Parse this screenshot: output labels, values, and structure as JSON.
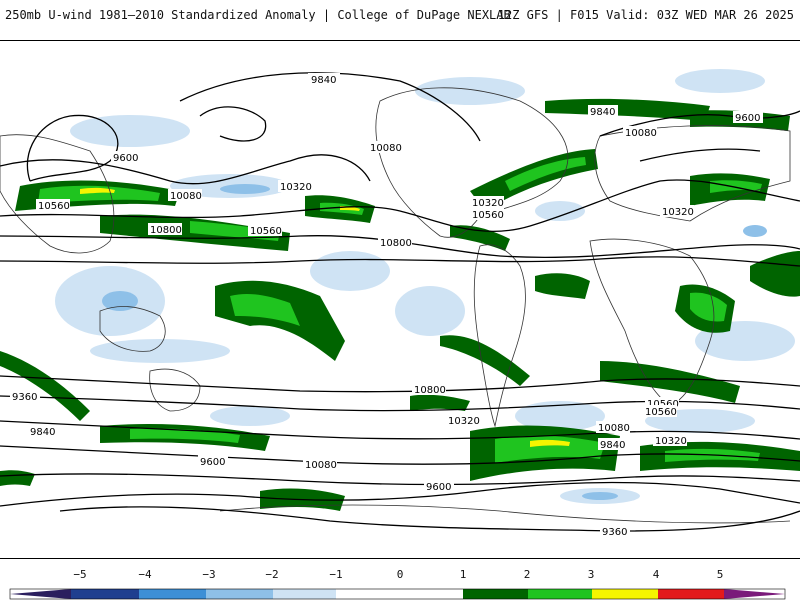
{
  "header": {
    "title": "250mb U-wind 1981–2010 Standardized Anomaly | College of DuPage NEXLAB",
    "run": "12Z GFS | F015 Valid: 03Z WED MAR 26 2025"
  },
  "map": {
    "contour_labels": [
      "9840",
      "9600",
      "10080",
      "10320",
      "10560",
      "10800",
      "9360",
      "10080",
      "10320",
      "9600",
      "9840",
      "10560",
      "10800",
      "10080",
      "10560",
      "10320",
      "9600",
      "9840",
      "10800",
      "10560",
      "10320",
      "10080",
      "9360",
      "9840",
      "9600",
      "10080",
      "10560",
      "10320"
    ]
  },
  "colorbar": {
    "ticks": [
      "−5",
      "−4",
      "−3",
      "−2",
      "−1",
      "0",
      "1",
      "2",
      "3",
      "4",
      "5"
    ],
    "colors": {
      "m5": "#2b1f5e",
      "m4": "#1f3f8f",
      "m3": "#3d8fd6",
      "m2": "#8ec0e8",
      "m1": "#cfe3f4",
      "zero": "#ffffff",
      "p1": "#006400",
      "p2": "#1fc41f",
      "p3": "#f5f500",
      "p4": "#e31a1c",
      "p5": "#7a1a7a"
    }
  }
}
